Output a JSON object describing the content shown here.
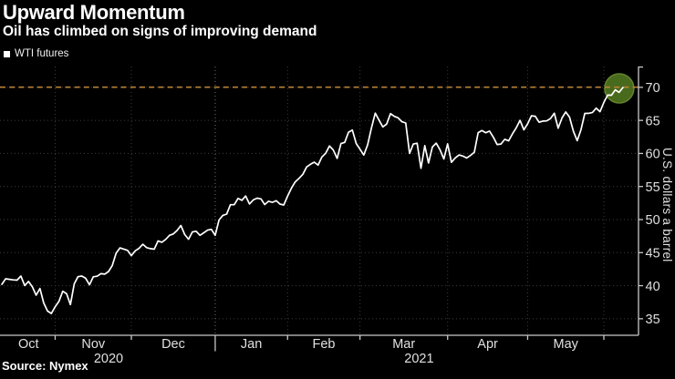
{
  "header": {
    "title": "Upward Momentum",
    "subtitle": "Oil has climbed on signs of improving demand"
  },
  "legend": {
    "label": "WTI futures",
    "swatch_color": "#ffffff"
  },
  "source": {
    "text": "Source: Nymex"
  },
  "chart_data": {
    "type": "line",
    "title": "Upward Momentum",
    "subtitle": "Oil has climbed on signs of improving demand",
    "ylabel": "U.S. dollars a barrel",
    "xlabel": "",
    "legend_position": "top-left",
    "grid": {
      "on": true,
      "color": "#3d3d3d",
      "year_boundary_color": "#757575"
    },
    "axis_color": "#c9c9c9",
    "tick_label_color": "#e0e0e0",
    "ylim": [
      32.5,
      73.15
    ],
    "y_ticks": [
      35,
      40,
      45,
      50,
      55,
      60,
      65,
      70
    ],
    "months": [
      {
        "label": "Oct",
        "year": "2020",
        "days": 14
      },
      {
        "label": "Nov",
        "year": "2020",
        "days": 20
      },
      {
        "label": "Dec",
        "year": "2020",
        "days": 22
      },
      {
        "label": "Jan",
        "year": "2021",
        "days": 19
      },
      {
        "label": "Feb",
        "year": "2021",
        "days": 19
      },
      {
        "label": "Mar",
        "year": "2021",
        "days": 23
      },
      {
        "label": "Apr",
        "year": "2021",
        "days": 21
      },
      {
        "label": "May",
        "year": "2021",
        "days": 20
      },
      {
        "label": "",
        "year": "2021",
        "days": 6
      }
    ],
    "year_labels": [
      "2020",
      "2021"
    ],
    "reference_line": {
      "value": 70.03,
      "color": "#b98237",
      "style": "dashed"
    },
    "highlight": {
      "shape": "circle",
      "color": "#486a1c",
      "edge_color": "#64832c",
      "radius": 16,
      "at": "last-point"
    },
    "series": [
      {
        "name": "WTI futures",
        "color": "#ffffff",
        "values": [
          40.2,
          41.04,
          40.96,
          40.88,
          40.83,
          41.46,
          40.03,
          40.64,
          39.85,
          38.56,
          39.57,
          37.39,
          36.17,
          35.79,
          36.81,
          37.66,
          39.15,
          38.79,
          37.14,
          40.29,
          41.36,
          41.45,
          41.12,
          40.13,
          41.34,
          41.43,
          41.82,
          41.74,
          42.15,
          43.06,
          44.91,
          45.71,
          45.53,
          45.34,
          44.55,
          45.28,
          45.64,
          46.26,
          45.76,
          45.6,
          45.52,
          46.78,
          46.57,
          46.99,
          47.62,
          47.82,
          48.36,
          49.1,
          47.74,
          47.02,
          48.12,
          48.23,
          47.62,
          48.0,
          48.4,
          48.52,
          47.62,
          49.93,
          50.63,
          50.83,
          52.24,
          52.25,
          53.21,
          52.91,
          53.57,
          52.36,
          52.98,
          53.24,
          53.13,
          52.27,
          52.77,
          52.61,
          52.85,
          52.34,
          52.2,
          53.55,
          54.76,
          55.69,
          56.23,
          56.85,
          57.97,
          58.36,
          58.68,
          58.24,
          59.47,
          60.05,
          61.14,
          60.52,
          59.24,
          61.49,
          61.67,
          63.22,
          63.53,
          61.5,
          60.64,
          59.75,
          61.28,
          63.83,
          66.09,
          65.05,
          64.01,
          64.44,
          66.02,
          65.61,
          65.39,
          64.8,
          64.6,
          60.0,
          61.42,
          61.55,
          57.76,
          61.18,
          58.56,
          60.97,
          61.56,
          60.55,
          59.16,
          61.45,
          58.65,
          59.33,
          59.77,
          59.6,
          59.32,
          59.7,
          60.18,
          63.15,
          63.46,
          63.13,
          63.38,
          62.44,
          61.35,
          61.43,
          62.14,
          61.91,
          62.94,
          63.86,
          65.01,
          63.58,
          64.49,
          65.69,
          65.63,
          64.71,
          64.9,
          64.92,
          65.28,
          66.08,
          63.82,
          65.37,
          66.27,
          65.49,
          63.36,
          61.94,
          63.58,
          66.05,
          66.07,
          66.21,
          66.85,
          66.32,
          67.72,
          68.83,
          68.81,
          69.62,
          69.23,
          69.98
        ]
      }
    ]
  }
}
